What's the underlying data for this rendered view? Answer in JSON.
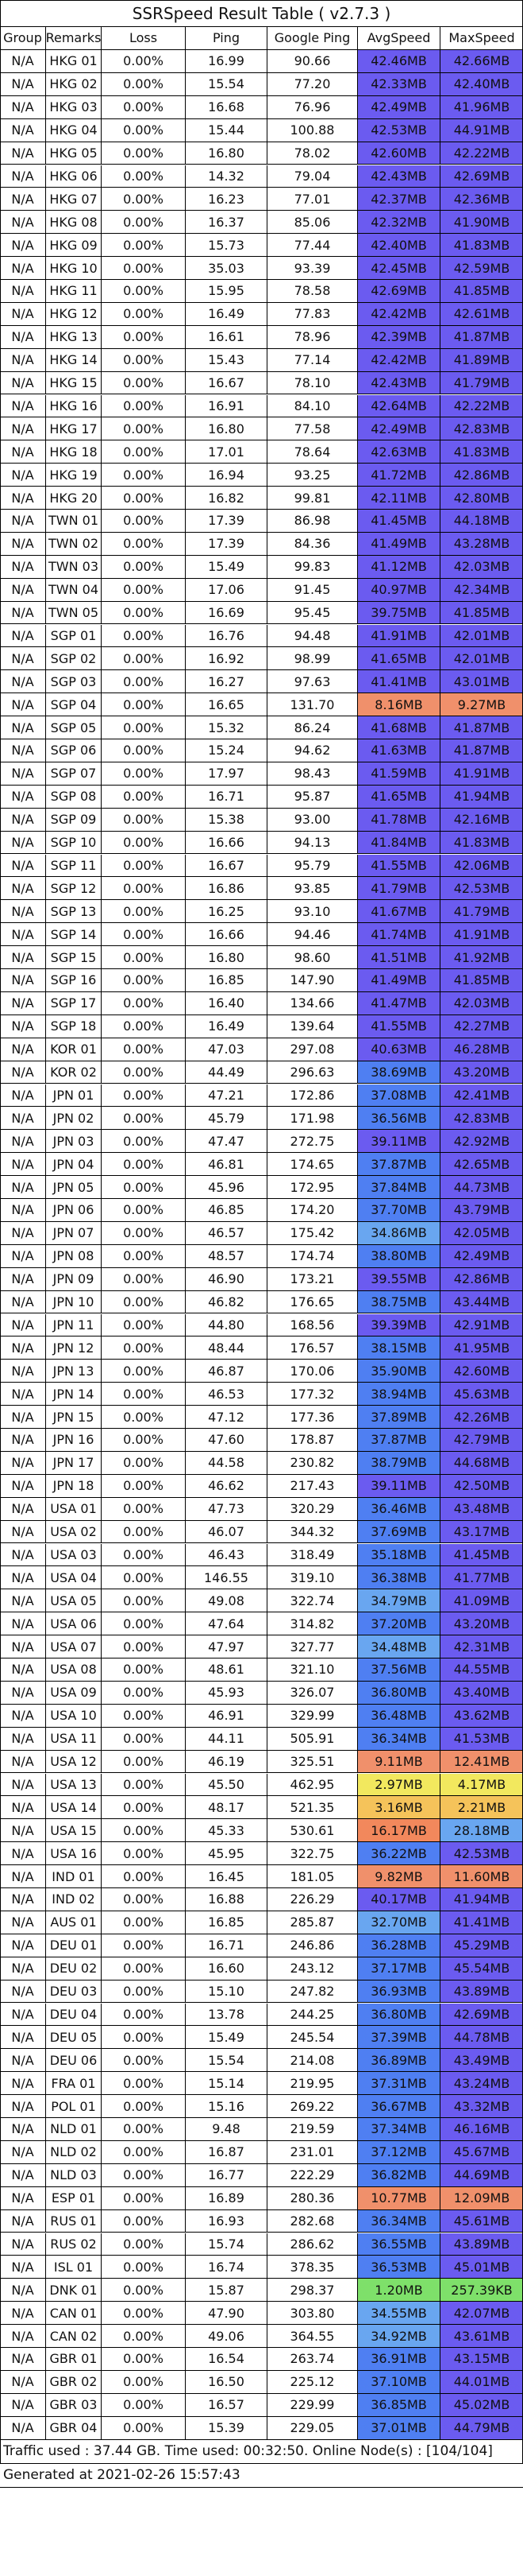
{
  "title": "SSRSpeed Result Table ( v2.7.3 )",
  "columns": [
    "Group",
    "Remarks",
    "Loss",
    "Ping",
    "Google Ping",
    "AvgSpeed",
    "MaxSpeed"
  ],
  "rows": [
    [
      "N/A",
      "HKG 01",
      "0.00%",
      "16.99",
      "90.66",
      "42.46MB",
      "42.66MB"
    ],
    [
      "N/A",
      "HKG 02",
      "0.00%",
      "15.54",
      "77.20",
      "42.33MB",
      "42.40MB"
    ],
    [
      "N/A",
      "HKG 03",
      "0.00%",
      "16.68",
      "76.96",
      "42.49MB",
      "41.96MB"
    ],
    [
      "N/A",
      "HKG 04",
      "0.00%",
      "15.44",
      "100.88",
      "42.53MB",
      "44.91MB"
    ],
    [
      "N/A",
      "HKG 05",
      "0.00%",
      "16.80",
      "78.02",
      "42.60MB",
      "42.22MB"
    ],
    [
      "N/A",
      "HKG 06",
      "0.00%",
      "14.32",
      "79.04",
      "42.43MB",
      "42.69MB"
    ],
    [
      "N/A",
      "HKG 07",
      "0.00%",
      "16.23",
      "77.01",
      "42.37MB",
      "42.36MB"
    ],
    [
      "N/A",
      "HKG 08",
      "0.00%",
      "16.37",
      "85.06",
      "42.32MB",
      "41.90MB"
    ],
    [
      "N/A",
      "HKG 09",
      "0.00%",
      "15.73",
      "77.44",
      "42.40MB",
      "41.83MB"
    ],
    [
      "N/A",
      "HKG 10",
      "0.00%",
      "35.03",
      "93.39",
      "42.45MB",
      "42.59MB"
    ],
    [
      "N/A",
      "HKG 11",
      "0.00%",
      "15.95",
      "78.58",
      "42.69MB",
      "41.85MB"
    ],
    [
      "N/A",
      "HKG 12",
      "0.00%",
      "16.49",
      "77.83",
      "42.42MB",
      "42.61MB"
    ],
    [
      "N/A",
      "HKG 13",
      "0.00%",
      "16.61",
      "78.96",
      "42.39MB",
      "41.87MB"
    ],
    [
      "N/A",
      "HKG 14",
      "0.00%",
      "15.43",
      "77.14",
      "42.42MB",
      "41.89MB"
    ],
    [
      "N/A",
      "HKG 15",
      "0.00%",
      "16.67",
      "78.10",
      "42.43MB",
      "41.79MB"
    ],
    [
      "N/A",
      "HKG 16",
      "0.00%",
      "16.91",
      "84.10",
      "42.64MB",
      "42.22MB"
    ],
    [
      "N/A",
      "HKG 17",
      "0.00%",
      "16.80",
      "77.58",
      "42.49MB",
      "42.83MB"
    ],
    [
      "N/A",
      "HKG 18",
      "0.00%",
      "17.01",
      "78.64",
      "42.63MB",
      "41.83MB"
    ],
    [
      "N/A",
      "HKG 19",
      "0.00%",
      "16.94",
      "93.25",
      "41.72MB",
      "42.86MB"
    ],
    [
      "N/A",
      "HKG 20",
      "0.00%",
      "16.82",
      "99.81",
      "42.11MB",
      "42.80MB"
    ],
    [
      "N/A",
      "TWN 01",
      "0.00%",
      "17.39",
      "86.98",
      "41.45MB",
      "44.18MB"
    ],
    [
      "N/A",
      "TWN 02",
      "0.00%",
      "17.39",
      "84.36",
      "41.49MB",
      "43.28MB"
    ],
    [
      "N/A",
      "TWN 03",
      "0.00%",
      "15.49",
      "99.83",
      "41.12MB",
      "42.03MB"
    ],
    [
      "N/A",
      "TWN 04",
      "0.00%",
      "17.06",
      "91.45",
      "40.97MB",
      "42.34MB"
    ],
    [
      "N/A",
      "TWN 05",
      "0.00%",
      "16.69",
      "95.45",
      "39.75MB",
      "41.85MB"
    ],
    [
      "N/A",
      "SGP 01",
      "0.00%",
      "16.76",
      "94.48",
      "41.91MB",
      "42.01MB"
    ],
    [
      "N/A",
      "SGP 02",
      "0.00%",
      "16.92",
      "98.99",
      "41.65MB",
      "42.01MB"
    ],
    [
      "N/A",
      "SGP 03",
      "0.00%",
      "16.27",
      "97.63",
      "41.41MB",
      "43.01MB"
    ],
    [
      "N/A",
      "SGP 04",
      "0.00%",
      "16.65",
      "131.70",
      "8.16MB",
      "9.27MB"
    ],
    [
      "N/A",
      "SGP 05",
      "0.00%",
      "15.32",
      "86.24",
      "41.68MB",
      "41.87MB"
    ],
    [
      "N/A",
      "SGP 06",
      "0.00%",
      "15.24",
      "94.62",
      "41.63MB",
      "41.87MB"
    ],
    [
      "N/A",
      "SGP 07",
      "0.00%",
      "17.97",
      "98.43",
      "41.59MB",
      "41.91MB"
    ],
    [
      "N/A",
      "SGP 08",
      "0.00%",
      "16.71",
      "95.87",
      "41.65MB",
      "41.94MB"
    ],
    [
      "N/A",
      "SGP 09",
      "0.00%",
      "15.38",
      "93.00",
      "41.78MB",
      "42.16MB"
    ],
    [
      "N/A",
      "SGP 10",
      "0.00%",
      "16.66",
      "94.13",
      "41.84MB",
      "41.83MB"
    ],
    [
      "N/A",
      "SGP 11",
      "0.00%",
      "16.67",
      "95.79",
      "41.55MB",
      "42.06MB"
    ],
    [
      "N/A",
      "SGP 12",
      "0.00%",
      "16.86",
      "93.85",
      "41.79MB",
      "42.53MB"
    ],
    [
      "N/A",
      "SGP 13",
      "0.00%",
      "16.25",
      "93.10",
      "41.67MB",
      "41.79MB"
    ],
    [
      "N/A",
      "SGP 14",
      "0.00%",
      "16.66",
      "94.46",
      "41.74MB",
      "41.91MB"
    ],
    [
      "N/A",
      "SGP 15",
      "0.00%",
      "16.80",
      "98.60",
      "41.51MB",
      "41.92MB"
    ],
    [
      "N/A",
      "SGP 16",
      "0.00%",
      "16.85",
      "147.90",
      "41.49MB",
      "41.85MB"
    ],
    [
      "N/A",
      "SGP 17",
      "0.00%",
      "16.40",
      "134.66",
      "41.47MB",
      "42.03MB"
    ],
    [
      "N/A",
      "SGP 18",
      "0.00%",
      "16.49",
      "139.64",
      "41.55MB",
      "42.27MB"
    ],
    [
      "N/A",
      "KOR 01",
      "0.00%",
      "47.03",
      "297.08",
      "40.63MB",
      "46.28MB"
    ],
    [
      "N/A",
      "KOR 02",
      "0.00%",
      "44.49",
      "296.63",
      "38.69MB",
      "43.20MB"
    ],
    [
      "N/A",
      "JPN 01",
      "0.00%",
      "47.21",
      "172.86",
      "37.08MB",
      "42.41MB"
    ],
    [
      "N/A",
      "JPN 02",
      "0.00%",
      "45.79",
      "171.98",
      "36.56MB",
      "42.83MB"
    ],
    [
      "N/A",
      "JPN 03",
      "0.00%",
      "47.47",
      "272.75",
      "39.11MB",
      "42.92MB"
    ],
    [
      "N/A",
      "JPN 04",
      "0.00%",
      "46.81",
      "174.65",
      "37.87MB",
      "42.65MB"
    ],
    [
      "N/A",
      "JPN 05",
      "0.00%",
      "45.96",
      "172.95",
      "37.84MB",
      "44.73MB"
    ],
    [
      "N/A",
      "JPN 06",
      "0.00%",
      "46.85",
      "174.20",
      "37.70MB",
      "43.79MB"
    ],
    [
      "N/A",
      "JPN 07",
      "0.00%",
      "46.57",
      "175.42",
      "34.86MB",
      "42.05MB"
    ],
    [
      "N/A",
      "JPN 08",
      "0.00%",
      "48.57",
      "174.74",
      "38.80MB",
      "42.49MB"
    ],
    [
      "N/A",
      "JPN 09",
      "0.00%",
      "46.90",
      "173.21",
      "39.55MB",
      "42.86MB"
    ],
    [
      "N/A",
      "JPN 10",
      "0.00%",
      "46.82",
      "176.65",
      "38.75MB",
      "43.44MB"
    ],
    [
      "N/A",
      "JPN 11",
      "0.00%",
      "44.80",
      "168.56",
      "39.39MB",
      "42.91MB"
    ],
    [
      "N/A",
      "JPN 12",
      "0.00%",
      "48.44",
      "176.57",
      "38.15MB",
      "41.95MB"
    ],
    [
      "N/A",
      "JPN 13",
      "0.00%",
      "46.87",
      "170.06",
      "35.90MB",
      "42.60MB"
    ],
    [
      "N/A",
      "JPN 14",
      "0.00%",
      "46.53",
      "177.32",
      "38.94MB",
      "45.63MB"
    ],
    [
      "N/A",
      "JPN 15",
      "0.00%",
      "47.12",
      "177.36",
      "37.89MB",
      "42.26MB"
    ],
    [
      "N/A",
      "JPN 16",
      "0.00%",
      "47.60",
      "178.87",
      "37.87MB",
      "42.79MB"
    ],
    [
      "N/A",
      "JPN 17",
      "0.00%",
      "44.58",
      "230.82",
      "38.79MB",
      "44.68MB"
    ],
    [
      "N/A",
      "JPN 18",
      "0.00%",
      "46.62",
      "217.43",
      "39.11MB",
      "42.50MB"
    ],
    [
      "N/A",
      "USA 01",
      "0.00%",
      "47.73",
      "320.29",
      "36.46MB",
      "43.48MB"
    ],
    [
      "N/A",
      "USA 02",
      "0.00%",
      "46.07",
      "344.32",
      "37.69MB",
      "43.17MB"
    ],
    [
      "N/A",
      "USA 03",
      "0.00%",
      "46.43",
      "318.49",
      "35.18MB",
      "41.45MB"
    ],
    [
      "N/A",
      "USA 04",
      "0.00%",
      "146.55",
      "319.10",
      "36.38MB",
      "41.77MB"
    ],
    [
      "N/A",
      "USA 05",
      "0.00%",
      "49.08",
      "322.74",
      "34.79MB",
      "41.09MB"
    ],
    [
      "N/A",
      "USA 06",
      "0.00%",
      "47.64",
      "314.82",
      "37.20MB",
      "43.20MB"
    ],
    [
      "N/A",
      "USA 07",
      "0.00%",
      "47.97",
      "327.77",
      "34.48MB",
      "42.31MB"
    ],
    [
      "N/A",
      "USA 08",
      "0.00%",
      "48.61",
      "321.10",
      "37.56MB",
      "44.55MB"
    ],
    [
      "N/A",
      "USA 09",
      "0.00%",
      "45.93",
      "326.07",
      "36.80MB",
      "43.40MB"
    ],
    [
      "N/A",
      "USA 10",
      "0.00%",
      "46.91",
      "329.99",
      "36.48MB",
      "43.62MB"
    ],
    [
      "N/A",
      "USA 11",
      "0.00%",
      "44.11",
      "505.91",
      "36.34MB",
      "41.53MB"
    ],
    [
      "N/A",
      "USA 12",
      "0.00%",
      "46.19",
      "325.51",
      "9.11MB",
      "12.41MB"
    ],
    [
      "N/A",
      "USA 13",
      "0.00%",
      "45.50",
      "462.95",
      "2.97MB",
      "4.17MB"
    ],
    [
      "N/A",
      "USA 14",
      "0.00%",
      "48.17",
      "521.35",
      "3.16MB",
      "2.21MB"
    ],
    [
      "N/A",
      "USA 15",
      "0.00%",
      "45.33",
      "530.61",
      "16.17MB",
      "28.18MB"
    ],
    [
      "N/A",
      "USA 16",
      "0.00%",
      "45.95",
      "322.75",
      "36.22MB",
      "42.53MB"
    ],
    [
      "N/A",
      "IND 01",
      "0.00%",
      "16.45",
      "181.05",
      "9.82MB",
      "11.60MB"
    ],
    [
      "N/A",
      "IND 02",
      "0.00%",
      "16.88",
      "226.29",
      "40.17MB",
      "41.94MB"
    ],
    [
      "N/A",
      "AUS 01",
      "0.00%",
      "16.85",
      "285.87",
      "32.70MB",
      "41.41MB"
    ],
    [
      "N/A",
      "DEU 01",
      "0.00%",
      "16.71",
      "246.86",
      "36.28MB",
      "45.29MB"
    ],
    [
      "N/A",
      "DEU 02",
      "0.00%",
      "16.60",
      "243.12",
      "37.17MB",
      "45.54MB"
    ],
    [
      "N/A",
      "DEU 03",
      "0.00%",
      "15.10",
      "247.82",
      "36.93MB",
      "43.89MB"
    ],
    [
      "N/A",
      "DEU 04",
      "0.00%",
      "13.78",
      "244.25",
      "36.80MB",
      "42.69MB"
    ],
    [
      "N/A",
      "DEU 05",
      "0.00%",
      "15.49",
      "245.54",
      "37.39MB",
      "44.78MB"
    ],
    [
      "N/A",
      "DEU 06",
      "0.00%",
      "15.54",
      "214.08",
      "36.89MB",
      "43.49MB"
    ],
    [
      "N/A",
      "FRA 01",
      "0.00%",
      "15.14",
      "219.95",
      "37.31MB",
      "43.24MB"
    ],
    [
      "N/A",
      "POL 01",
      "0.00%",
      "15.16",
      "269.22",
      "36.67MB",
      "43.32MB"
    ],
    [
      "N/A",
      "NLD 01",
      "0.00%",
      "9.48",
      "219.59",
      "37.34MB",
      "46.16MB"
    ],
    [
      "N/A",
      "NLD 02",
      "0.00%",
      "16.87",
      "231.01",
      "37.12MB",
      "45.67MB"
    ],
    [
      "N/A",
      "NLD 03",
      "0.00%",
      "16.77",
      "222.29",
      "36.82MB",
      "44.69MB"
    ],
    [
      "N/A",
      "ESP 01",
      "0.00%",
      "16.89",
      "280.36",
      "10.77MB",
      "12.09MB"
    ],
    [
      "N/A",
      "RUS 01",
      "0.00%",
      "16.93",
      "282.68",
      "36.34MB",
      "45.61MB"
    ],
    [
      "N/A",
      "RUS 02",
      "0.00%",
      "15.74",
      "286.62",
      "36.55MB",
      "43.89MB"
    ],
    [
      "N/A",
      "ISL 01",
      "0.00%",
      "16.74",
      "378.35",
      "36.53MB",
      "45.01MB"
    ],
    [
      "N/A",
      "DNK 01",
      "0.00%",
      "15.87",
      "298.37",
      "1.20MB",
      "257.39KB"
    ],
    [
      "N/A",
      "CAN 01",
      "0.00%",
      "47.90",
      "303.80",
      "34.55MB",
      "42.07MB"
    ],
    [
      "N/A",
      "CAN 02",
      "0.00%",
      "49.06",
      "364.55",
      "34.92MB",
      "43.61MB"
    ],
    [
      "N/A",
      "GBR 01",
      "0.00%",
      "16.54",
      "263.74",
      "36.91MB",
      "43.15MB"
    ],
    [
      "N/A",
      "GBR 02",
      "0.00%",
      "16.50",
      "225.12",
      "37.10MB",
      "44.01MB"
    ],
    [
      "N/A",
      "GBR 03",
      "0.00%",
      "16.57",
      "229.99",
      "36.85MB",
      "45.02MB"
    ],
    [
      "N/A",
      "GBR 04",
      "0.00%",
      "15.39",
      "229.05",
      "37.01MB",
      "44.79MB"
    ]
  ],
  "footer": {
    "traffic": "Traffic used : 37.44 GB. Time used: 00:32:50. Online Node(s) : [104/104]",
    "generated": "Generated at 2021-02-26 15:57:43"
  },
  "colors": {
    "purple": "#6b5bf0",
    "blue": "#4f7ff2",
    "lightblue": "#69a6f0",
    "orange": "#f2885c",
    "yellow": "#f5c35a",
    "lightyellow": "#f2e85e",
    "green": "#7ee06a",
    "salmon": "#f0906b"
  }
}
